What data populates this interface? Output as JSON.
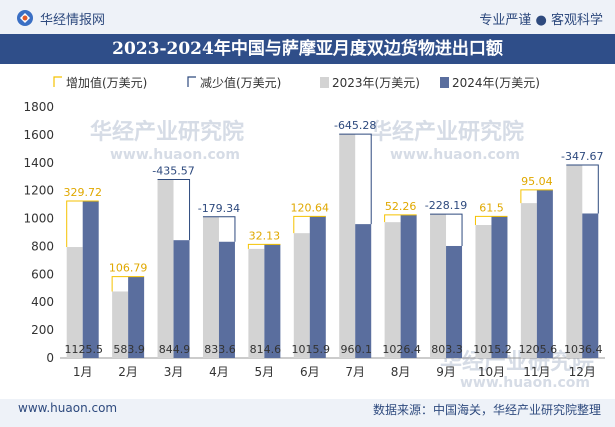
{
  "header": {
    "site_name": "华经情报网",
    "tagline": "专业严谨 ● 客观科学",
    "title": "2023-2024年中国与萨摩亚月度双边货物进出口额"
  },
  "footer": {
    "url": "www.huaon.com",
    "source": "数据来源：中国海关，华经产业研究院整理"
  },
  "watermark": {
    "text": "华经产业研究院",
    "url": "www.huaon.com"
  },
  "colors": {
    "header_bg": "#eef2f8",
    "title_bg": "#2f4e89",
    "bar_2023": "#d3d3d3",
    "bar_2024": "#5a6e9e",
    "increase": "#f5c200",
    "decrease": "#2e4a7e"
  },
  "chart_data": {
    "type": "bar",
    "title": "2023-2024年中国与萨摩亚月度双边货物进出口额",
    "ylim": [
      0,
      1800
    ],
    "yticks": [
      0,
      200,
      400,
      600,
      800,
      1000,
      1200,
      1400,
      1600,
      1800
    ],
    "legend_position": "top-left",
    "legend": [
      "增加值(万美元)",
      "减少值(万美元)",
      "2023年(万美元)",
      "2024年(万美元)"
    ],
    "categories": [
      "1月",
      "2月",
      "3月",
      "4月",
      "5月",
      "6月",
      "7月",
      "8月",
      "9月",
      "10月",
      "11月",
      "12月"
    ],
    "series": [
      {
        "name": "2023年(万美元)",
        "values": [
          795.8,
          477.1,
          1280.5,
          1012.9,
          782.5,
          895.3,
          1605.4,
          974.1,
          1031.5,
          953.7,
          1110.6,
          1384.1
        ]
      },
      {
        "name": "2024年(万美元)",
        "values": [
          1125.5,
          583.9,
          844.9,
          833.6,
          814.6,
          1015.9,
          960.1,
          1026.4,
          803.3,
          1015.2,
          1205.6,
          1036.4
        ]
      }
    ],
    "changes": [
      329.72,
      106.79,
      -435.57,
      -179.34,
      32.13,
      120.64,
      -645.28,
      52.26,
      -228.19,
      61.5,
      95.04,
      -347.67
    ],
    "change_labels": [
      "329.72",
      "106.79",
      "-435.57",
      "-179.34",
      "32.13",
      "120.64",
      "-645.28",
      "52.26",
      "-228.19",
      "61.5",
      "95.04",
      "-347.67"
    ],
    "value_labels_2024": [
      "1125.5",
      "583.9",
      "844.9",
      "833.6",
      "814.6",
      "1015.9",
      "960.1",
      "1026.4",
      "803.3",
      "1015.2",
      "1205.6",
      "1036.4"
    ]
  }
}
